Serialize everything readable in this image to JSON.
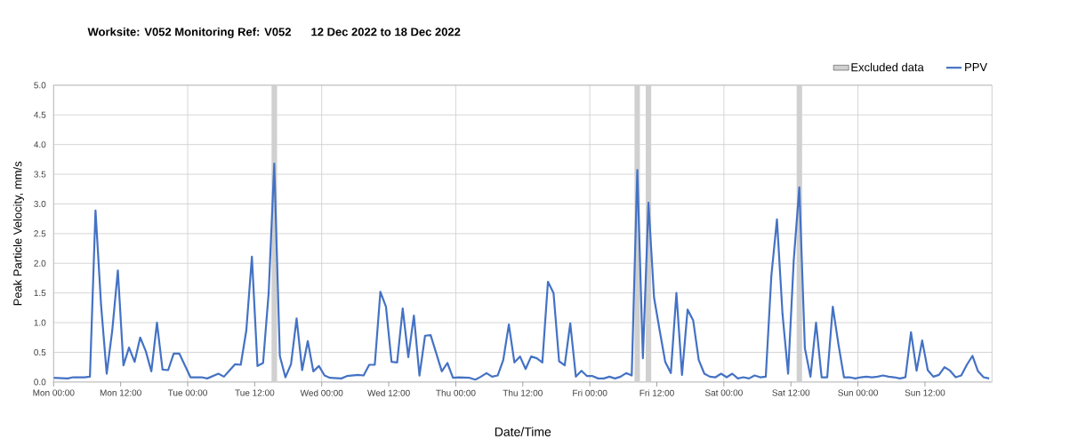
{
  "chart_data": {
    "type": "line",
    "title": "Worksite: V052    Monitoring Ref: V052",
    "subtitle": "12 Dec 2022 to 18 Dec 2022",
    "xlabel": "Date/Time",
    "ylabel": "Peak Particle Velocity, mm/s",
    "xlim": [
      "2022-12-12T00:00",
      "2022-12-19T00:00"
    ],
    "xticks": [
      {
        "value": "2022-12-12T00:00",
        "label": "Mon 00:00"
      },
      {
        "value": "2022-12-12T12:00",
        "label": "Mon 12:00"
      },
      {
        "value": "2022-12-13T00:00",
        "label": "Tue 00:00"
      },
      {
        "value": "2022-12-13T12:00",
        "label": "Tue 12:00"
      },
      {
        "value": "2022-12-14T00:00",
        "label": "Wed 00:00"
      },
      {
        "value": "2022-12-14T12:00",
        "label": "Wed 12:00"
      },
      {
        "value": "2022-12-15T00:00",
        "label": "Thu 00:00"
      },
      {
        "value": "2022-12-15T12:00",
        "label": "Thu 12:00"
      },
      {
        "value": "2022-12-16T00:00",
        "label": "Fri 00:00"
      },
      {
        "value": "2022-12-16T12:00",
        "label": "Fri 12:00"
      },
      {
        "value": "2022-12-17T00:00",
        "label": "Sat 00:00"
      },
      {
        "value": "2022-12-17T12:00",
        "label": "Sat 12:00"
      },
      {
        "value": "2022-12-18T00:00",
        "label": "Sun 00:00"
      },
      {
        "value": "2022-12-18T12:00",
        "label": "Sun 12:00"
      }
    ],
    "ylim": [
      0,
      5
    ],
    "yticks": [
      {
        "value": 0,
        "label": "0.0"
      },
      0.5,
      {
        "value": 1,
        "label": "1.0"
      },
      1.5,
      {
        "value": 2,
        "label": "2.0"
      },
      2.5,
      {
        "value": 3,
        "label": "3.0"
      },
      3.5,
      {
        "value": 4,
        "label": "4.0"
      },
      4.5,
      {
        "value": 5,
        "label": "5.0"
      }
    ],
    "grid": true,
    "legend": "top right",
    "bands": [
      {
        "axis": "x",
        "from": "2022-12-13T15:00",
        "to": "2022-12-13T16:00",
        "label": "Excluded data",
        "color": "#d0d0d0"
      },
      {
        "axis": "x",
        "from": "2022-12-16T08:00",
        "to": "2022-12-16T09:00",
        "color": "#d0d0d0"
      },
      {
        "axis": "x",
        "from": "2022-12-16T10:00",
        "to": "2022-12-16T11:00",
        "color": "#d0d0d0"
      },
      {
        "axis": "x",
        "from": "2022-12-17T13:00",
        "to": "2022-12-17T14:00",
        "color": "#d0d0d0"
      }
    ],
    "series": [
      {
        "name": "PPV",
        "color": "#4472c4",
        "x": [
          "2022-12-12T00:00",
          "2022-12-12T02:30",
          "2022-12-12T03:30",
          "2022-12-12T05:30",
          "2022-12-12T06:30",
          "2022-12-12T07:30",
          "2022-12-12T08:30",
          "2022-12-12T09:30",
          "2022-12-12T10:30",
          "2022-12-12T11:30",
          "2022-12-12T12:30",
          "2022-12-12T13:30",
          "2022-12-12T14:30",
          "2022-12-12T15:30",
          "2022-12-12T16:30",
          "2022-12-12T17:30",
          "2022-12-12T18:30",
          "2022-12-12T19:30",
          "2022-12-12T20:30",
          "2022-12-12T21:30",
          "2022-12-12T22:30",
          "2022-12-13T00:30",
          "2022-12-13T02:30",
          "2022-12-13T03:30",
          "2022-12-13T05:30",
          "2022-12-13T06:30",
          "2022-12-13T08:30",
          "2022-12-13T09:30",
          "2022-12-13T10:30",
          "2022-12-13T11:30",
          "2022-12-13T12:30",
          "2022-12-13T13:30",
          "2022-12-13T14:30",
          "2022-12-13T15:30",
          "2022-12-13T16:30",
          "2022-12-13T17:30",
          "2022-12-13T18:30",
          "2022-12-13T19:30",
          "2022-12-13T20:30",
          "2022-12-13T21:30",
          "2022-12-13T22:30",
          "2022-12-13T23:30",
          "2022-12-14T00:30",
          "2022-12-14T01:30",
          "2022-12-14T03:30",
          "2022-12-14T04:30",
          "2022-12-14T06:30",
          "2022-12-14T07:30",
          "2022-12-14T08:30",
          "2022-12-14T09:30",
          "2022-12-14T10:30",
          "2022-12-14T11:30",
          "2022-12-14T12:30",
          "2022-12-14T13:30",
          "2022-12-14T14:30",
          "2022-12-14T15:30",
          "2022-12-14T16:30",
          "2022-12-14T17:30",
          "2022-12-14T18:30",
          "2022-12-14T19:30",
          "2022-12-14T21:30",
          "2022-12-14T22:30",
          "2022-12-14T23:30",
          "2022-12-15T00:30",
          "2022-12-15T02:30",
          "2022-12-15T03:30",
          "2022-12-15T04:30",
          "2022-12-15T05:30",
          "2022-12-15T06:30",
          "2022-12-15T07:30",
          "2022-12-15T08:30",
          "2022-12-15T09:30",
          "2022-12-15T10:30",
          "2022-12-15T11:30",
          "2022-12-15T12:30",
          "2022-12-15T13:30",
          "2022-12-15T14:30",
          "2022-12-15T15:30",
          "2022-12-15T16:30",
          "2022-12-15T17:30",
          "2022-12-15T18:30",
          "2022-12-15T19:30",
          "2022-12-15T20:30",
          "2022-12-15T21:30",
          "2022-12-15T22:30",
          "2022-12-15T23:30",
          "2022-12-16T00:30",
          "2022-12-16T01:30",
          "2022-12-16T02:30",
          "2022-12-16T03:30",
          "2022-12-16T04:30",
          "2022-12-16T05:30",
          "2022-12-16T06:30",
          "2022-12-16T07:30",
          "2022-12-16T08:30",
          "2022-12-16T09:30",
          "2022-12-16T10:30",
          "2022-12-16T11:30",
          "2022-12-16T12:30",
          "2022-12-16T13:30",
          "2022-12-16T14:30",
          "2022-12-16T15:30",
          "2022-12-16T16:30",
          "2022-12-16T17:30",
          "2022-12-16T18:30",
          "2022-12-16T19:30",
          "2022-12-16T20:30",
          "2022-12-16T21:30",
          "2022-12-16T22:30",
          "2022-12-16T23:30",
          "2022-12-17T00:30",
          "2022-12-17T01:30",
          "2022-12-17T02:30",
          "2022-12-17T03:30",
          "2022-12-17T04:30",
          "2022-12-17T05:30",
          "2022-12-17T06:30",
          "2022-12-17T07:30",
          "2022-12-17T08:30",
          "2022-12-17T09:30",
          "2022-12-17T10:30",
          "2022-12-17T11:30",
          "2022-12-17T12:30",
          "2022-12-17T13:30",
          "2022-12-17T14:30",
          "2022-12-17T15:30",
          "2022-12-17T16:30",
          "2022-12-17T17:30",
          "2022-12-17T18:30",
          "2022-12-17T19:30",
          "2022-12-17T20:30",
          "2022-12-17T21:30",
          "2022-12-17T22:30",
          "2022-12-17T23:30",
          "2022-12-18T00:30",
          "2022-12-18T01:30",
          "2022-12-18T02:30",
          "2022-12-18T03:30",
          "2022-12-18T04:30",
          "2022-12-18T05:30",
          "2022-12-18T06:30",
          "2022-12-18T07:30",
          "2022-12-18T08:30",
          "2022-12-18T09:30",
          "2022-12-18T10:30",
          "2022-12-18T11:30",
          "2022-12-18T12:30",
          "2022-12-18T13:30",
          "2022-12-18T14:30",
          "2022-12-18T15:30",
          "2022-12-18T16:30",
          "2022-12-18T17:30",
          "2022-12-18T18:30",
          "2022-12-18T19:30",
          "2022-12-18T20:30",
          "2022-12-18T21:30",
          "2022-12-18T22:30",
          "2022-12-18T23:30"
        ],
        "values": [
          0.07,
          0.06,
          0.08,
          0.08,
          0.09,
          2.89,
          1.29,
          0.14,
          0.87,
          1.88,
          0.28,
          0.58,
          0.34,
          0.75,
          0.52,
          0.18,
          1.0,
          0.21,
          0.2,
          0.48,
          0.48,
          0.08,
          0.08,
          0.06,
          0.14,
          0.09,
          0.3,
          0.29,
          0.87,
          2.11,
          0.27,
          0.32,
          1.5,
          3.68,
          0.44,
          0.08,
          0.3,
          1.07,
          0.2,
          0.69,
          0.18,
          0.27,
          0.11,
          0.07,
          0.06,
          0.1,
          0.12,
          0.11,
          0.29,
          0.29,
          1.52,
          1.27,
          0.34,
          0.33,
          1.24,
          0.42,
          1.12,
          0.11,
          0.78,
          0.79,
          0.18,
          0.32,
          0.07,
          0.08,
          0.07,
          0.04,
          0.09,
          0.15,
          0.09,
          0.11,
          0.37,
          0.97,
          0.33,
          0.43,
          0.22,
          0.43,
          0.4,
          0.33,
          1.69,
          1.5,
          0.35,
          0.28,
          0.99,
          0.09,
          0.19,
          0.1,
          0.1,
          0.06,
          0.06,
          0.09,
          0.06,
          0.09,
          0.15,
          0.11,
          3.57,
          0.4,
          3.02,
          1.42,
          0.87,
          0.34,
          0.15,
          1.5,
          0.12,
          1.22,
          1.04,
          0.37,
          0.14,
          0.09,
          0.08,
          0.14,
          0.08,
          0.14,
          0.06,
          0.08,
          0.06,
          0.11,
          0.08,
          0.09,
          1.79,
          2.74,
          1.14,
          0.14,
          2.04,
          3.28,
          0.57,
          0.09,
          1.0,
          0.08,
          0.08,
          1.27,
          0.64,
          0.08,
          0.08,
          0.06,
          0.08,
          0.09,
          0.08,
          0.09,
          0.11,
          0.09,
          0.08,
          0.06,
          0.08,
          0.84,
          0.19,
          0.7,
          0.2,
          0.09,
          0.12,
          0.25,
          0.19,
          0.08,
          0.11,
          0.29,
          0.44,
          0.18,
          0.08,
          0.06
        ]
      }
    ]
  }
}
